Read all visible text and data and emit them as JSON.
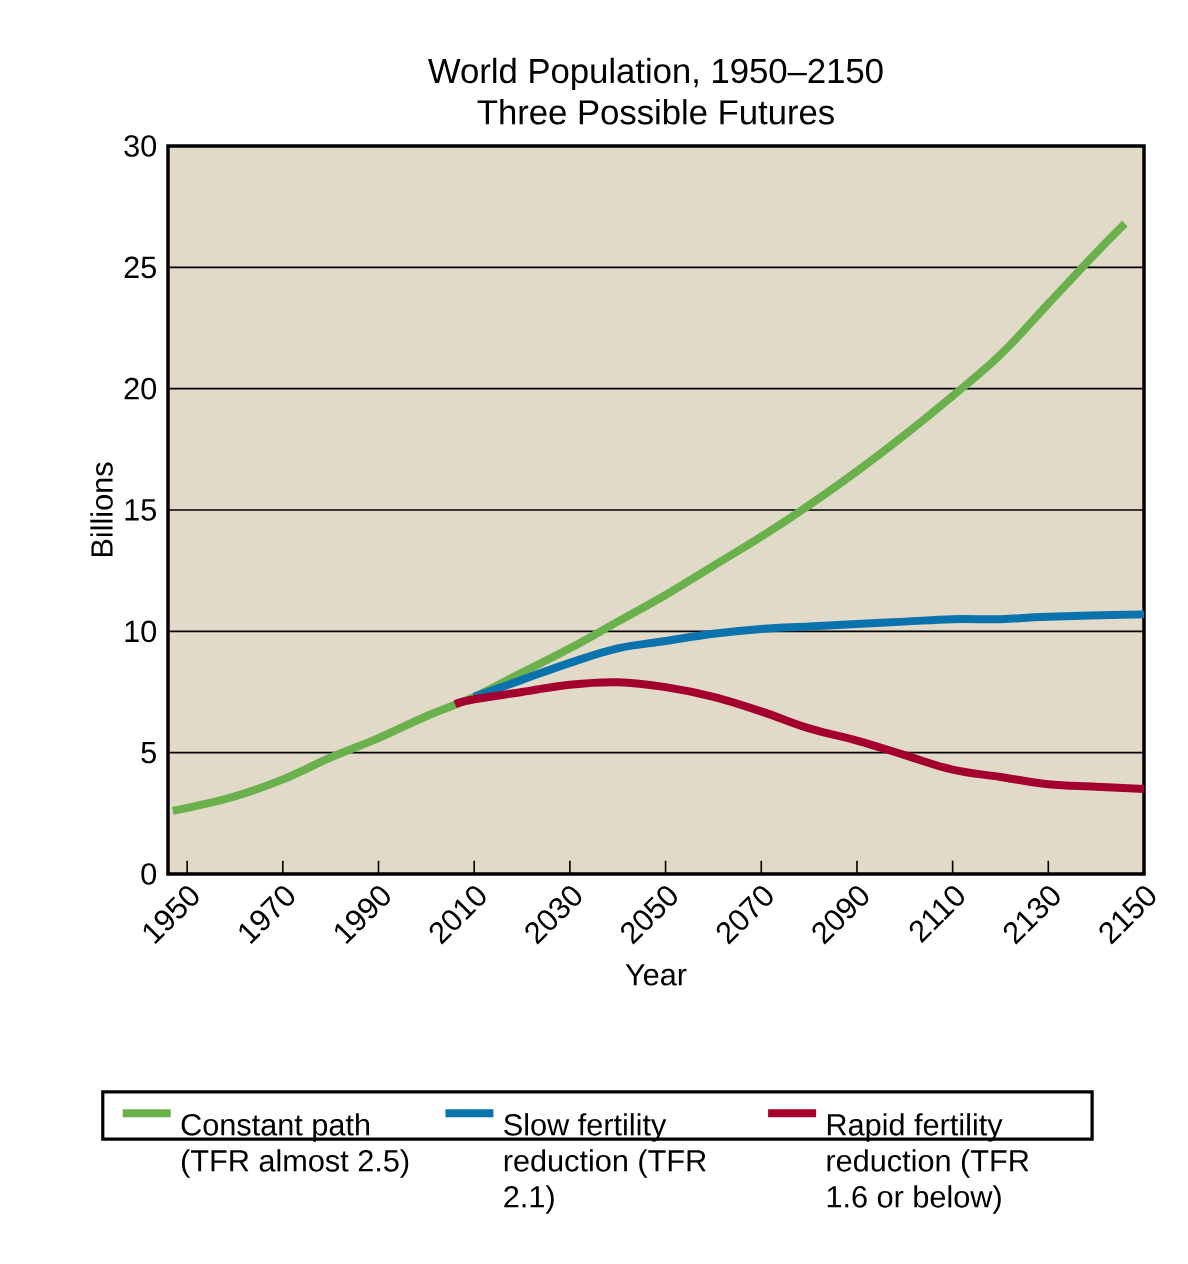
{
  "chart_data": {
    "type": "line",
    "title": "World Population, 1950–2150",
    "subtitle": "Three Possible Futures",
    "xlabel": "Year",
    "ylabel": "Billions",
    "xlim": [
      1946,
      2150
    ],
    "xticks": [
      1950,
      1970,
      1990,
      2010,
      2030,
      2050,
      2070,
      2090,
      2110,
      2130,
      2150
    ],
    "ylim": [
      0,
      30
    ],
    "yticks": [
      0,
      5,
      10,
      15,
      20,
      25,
      30
    ],
    "grid": "y",
    "legend": "bottom",
    "series": [
      {
        "name": "Constant path (TFR almost 2.5)",
        "color": "#6ab04c",
        "x": [
          1947,
          1960,
          1970,
          1980,
          1990,
          2000,
          2010,
          2020,
          2030,
          2040,
          2050,
          2060,
          2070,
          2080,
          2090,
          2100,
          2110,
          2120,
          2130,
          2140,
          2146
        ],
        "values": [
          2.6,
          3.2,
          3.9,
          4.8,
          5.6,
          6.5,
          7.3,
          8.3,
          9.3,
          10.4,
          11.5,
          12.7,
          13.9,
          15.2,
          16.6,
          18.1,
          19.7,
          21.4,
          23.5,
          25.6,
          26.8
        ]
      },
      {
        "name": "Slow fertility reduction (TFR 2.1)",
        "color": "#0a72ad",
        "x": [
          2010,
          2020,
          2030,
          2040,
          2050,
          2060,
          2070,
          2080,
          2090,
          2100,
          2110,
          2120,
          2130,
          2150
        ],
        "values": [
          7.3,
          8.0,
          8.7,
          9.3,
          9.6,
          9.9,
          10.1,
          10.2,
          10.3,
          10.4,
          10.5,
          10.5,
          10.6,
          10.7
        ]
      },
      {
        "name": "Rapid fertility reduction (TFR 1.6 or below)",
        "color": "#a3002f",
        "x": [
          2006,
          2010,
          2020,
          2030,
          2040,
          2050,
          2060,
          2070,
          2080,
          2090,
          2100,
          2110,
          2120,
          2130,
          2140,
          2150
        ],
        "values": [
          7.0,
          7.2,
          7.5,
          7.8,
          7.9,
          7.7,
          7.3,
          6.7,
          6.0,
          5.5,
          4.9,
          4.3,
          4.0,
          3.7,
          3.6,
          3.5
        ]
      }
    ]
  }
}
